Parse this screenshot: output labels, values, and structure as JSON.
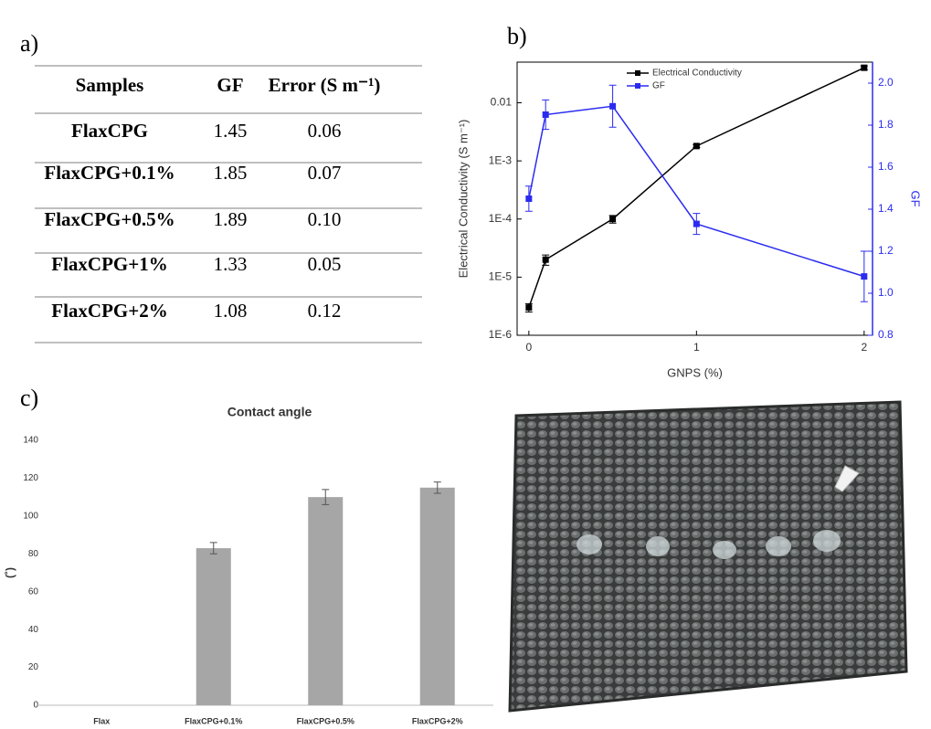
{
  "panel_labels": [
    "a)",
    "b)",
    "c)"
  ],
  "table": {
    "header": [
      "Samples",
      "GF",
      "Error (S m⁻¹)"
    ],
    "rows": [
      [
        "FlaxCPG",
        "1.45",
        "0.06"
      ],
      [
        "FlaxCPG+0.1%",
        "1.85",
        "0.07"
      ],
      [
        "FlaxCPG+0.5%",
        "1.89",
        "0.10"
      ],
      [
        "FlaxCPG+1%",
        "1.33",
        "0.05"
      ],
      [
        "FlaxCPG+2%",
        "1.08",
        "0.12"
      ]
    ]
  },
  "chart_data": [
    {
      "type": "line",
      "xlabel": "GNPS (%)",
      "ylabel": "Electrical Conductivity (S m⁻¹)",
      "y2label": "GF",
      "x": [
        0,
        0.1,
        0.5,
        1,
        2
      ],
      "xlim": [
        -0.07,
        2.05
      ],
      "xticks": [
        0,
        1,
        2
      ],
      "ylog": true,
      "ylim": [
        1e-06,
        0.05
      ],
      "yticks": [
        {
          "value": 1e-06,
          "label": "1E-6"
        },
        {
          "value": 1e-05,
          "label": "1E-5"
        },
        {
          "value": 0.0001,
          "label": "1E-4"
        },
        {
          "value": 0.001,
          "label": "1E-3"
        },
        0.01
      ],
      "y2lim": [
        0.8,
        2.1
      ],
      "y2ticks": [
        0.8,
        {
          "value": 1,
          "label": "1.0"
        },
        1.2,
        1.4,
        1.6,
        1.8,
        {
          "value": 2,
          "label": "2.0"
        }
      ],
      "legend": "top",
      "series": [
        {
          "name": "Electrical Conductivity",
          "color": "#000000",
          "values": [
            3e-06,
            2e-05,
            0.0001,
            0.0018,
            0.04
          ],
          "errors": [
            5e-07,
            4e-06,
            1.5e-05,
            0.0001,
            0.003
          ]
        },
        {
          "name": "GF",
          "color": "#2b2bf0",
          "axis": "y2",
          "values": [
            1.45,
            1.85,
            1.89,
            1.33,
            1.08
          ],
          "errors": [
            0.06,
            0.07,
            0.1,
            0.05,
            0.12
          ]
        }
      ]
    },
    {
      "type": "bar",
      "title": "Contact angle",
      "ylabel": "(˚)",
      "categories": [
        "Flax",
        "FlaxCPG+0.1%",
        "FlaxCPG+0.5%",
        "FlaxCPG+2%"
      ],
      "values": [
        null,
        83,
        110,
        115
      ],
      "errors": [
        null,
        3,
        4,
        3
      ],
      "color": "#a6a6a6",
      "ylim": [
        0,
        140
      ],
      "yticks": [
        0,
        20,
        40,
        60,
        80,
        100,
        120,
        140
      ]
    }
  ]
}
